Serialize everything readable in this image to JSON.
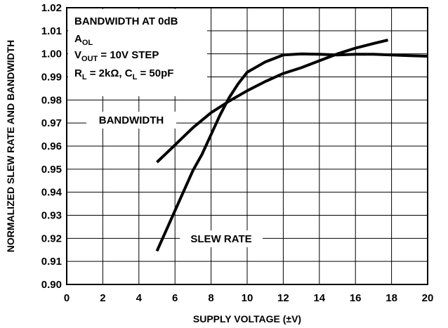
{
  "chart_data": {
    "type": "line",
    "xlabel": "SUPPLY VOLTAGE (±V)",
    "ylabel": "NORMALIZED SLEW RATE AND BANDWIDTH",
    "xlim": [
      0,
      20
    ],
    "ylim": [
      0.9,
      1.02
    ],
    "x_ticks": [
      "0",
      "2",
      "4",
      "6",
      "8",
      "10",
      "12",
      "14",
      "16",
      "18",
      "20"
    ],
    "y_ticks": [
      "0.90",
      "0.91",
      "0.92",
      "0.93",
      "0.94",
      "0.95",
      "0.96",
      "0.97",
      "0.98",
      "0.99",
      "1.00",
      "1.01",
      "1.02"
    ],
    "grid": true,
    "annotation_box": {
      "line1": "BANDWIDTH AT 0dB",
      "line2_main": "A",
      "line2_sub": "OL",
      "line3_main": "V",
      "line3_sub": "OUT",
      "line3_rest": " = 10V STEP",
      "line4_a": "R",
      "line4_a_sub": "L",
      "line4_b": " = 2kΩ, C",
      "line4_b_sub": "L",
      "line4_c": " = 50pF"
    },
    "series": [
      {
        "name": "BANDWIDTH",
        "x": [
          5,
          6,
          7,
          8,
          9,
          10,
          11,
          12,
          13,
          14,
          15,
          16,
          17,
          17.8
        ],
        "values": [
          0.953,
          0.9605,
          0.968,
          0.9745,
          0.9795,
          0.984,
          0.988,
          0.9915,
          0.994,
          0.997,
          1.0,
          1.0025,
          1.0045,
          1.006
        ]
      },
      {
        "name": "SLEW RATE",
        "x": [
          5,
          6,
          7,
          7.5,
          8,
          8.5,
          9,
          9.5,
          10,
          11,
          12,
          13,
          14,
          15,
          16,
          17,
          18,
          19,
          20
        ],
        "values": [
          0.9145,
          0.932,
          0.9495,
          0.9565,
          0.965,
          0.9735,
          0.981,
          0.987,
          0.992,
          0.9965,
          0.9995,
          1.0,
          0.9998,
          0.9995,
          0.9998,
          0.9998,
          0.9995,
          0.9992,
          0.999
        ]
      }
    ]
  }
}
